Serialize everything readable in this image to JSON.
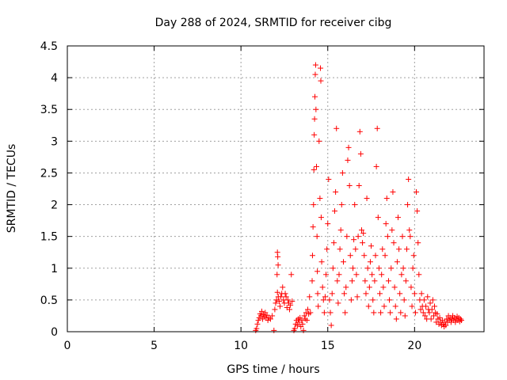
{
  "chart_data": {
    "type": "scatter",
    "title": "Day 288 of 2024, SRMTID for receiver cibg",
    "xlabel": "GPS time / hours",
    "ylabel": "SRMTID / TECUs",
    "xlim": [
      0,
      24
    ],
    "ylim": [
      0,
      4.5
    ],
    "xticks": [
      0,
      5,
      10,
      15,
      20
    ],
    "xtick_labels": [
      "0",
      "5",
      "10",
      "15",
      "20"
    ],
    "yticks": [
      0,
      0.5,
      1,
      1.5,
      2,
      2.5,
      3,
      3.5,
      4,
      4.5
    ],
    "ytick_labels": [
      "0",
      "0.5",
      "1",
      "1.5",
      "2",
      "2.5",
      "3",
      "3.5",
      "4",
      "4.5"
    ],
    "grid": true,
    "marker": "+",
    "color": "#ff0000",
    "series": [
      {
        "name": "cibg",
        "points": [
          [
            10.85,
            0.02
          ],
          [
            10.9,
            0.05
          ],
          [
            10.95,
            0.12
          ],
          [
            11.0,
            0.18
          ],
          [
            11.05,
            0.22
          ],
          [
            11.1,
            0.28
          ],
          [
            11.15,
            0.25
          ],
          [
            11.2,
            0.32
          ],
          [
            11.25,
            0.2
          ],
          [
            11.3,
            0.27
          ],
          [
            11.35,
            0.24
          ],
          [
            11.4,
            0.3
          ],
          [
            11.45,
            0.22
          ],
          [
            11.5,
            0.26
          ],
          [
            11.55,
            0.18
          ],
          [
            11.6,
            0.22
          ],
          [
            11.7,
            0.2
          ],
          [
            11.8,
            0.25
          ],
          [
            11.9,
            0.02
          ],
          [
            11.95,
            0.35
          ],
          [
            12.0,
            0.45
          ],
          [
            12.05,
            0.5
          ],
          [
            12.1,
            0.62
          ],
          [
            12.15,
            0.55
          ],
          [
            12.2,
            0.48
          ],
          [
            12.25,
            0.4
          ],
          [
            12.1,
            1.25
          ],
          [
            12.12,
            1.18
          ],
          [
            12.14,
            1.05
          ],
          [
            12.08,
            0.9
          ],
          [
            12.3,
            0.55
          ],
          [
            12.35,
            0.6
          ],
          [
            12.4,
            0.7
          ],
          [
            12.45,
            0.5
          ],
          [
            12.5,
            0.45
          ],
          [
            12.55,
            0.6
          ],
          [
            12.6,
            0.55
          ],
          [
            12.65,
            0.38
          ],
          [
            12.7,
            0.5
          ],
          [
            12.75,
            0.45
          ],
          [
            12.8,
            0.35
          ],
          [
            12.85,
            0.42
          ],
          [
            12.9,
            0.9
          ],
          [
            12.95,
            0.48
          ],
          [
            13.05,
            0.02
          ],
          [
            13.1,
            0.05
          ],
          [
            13.15,
            0.12
          ],
          [
            13.2,
            0.18
          ],
          [
            13.25,
            0.1
          ],
          [
            13.3,
            0.2
          ],
          [
            13.35,
            0.15
          ],
          [
            13.4,
            0.22
          ],
          [
            13.45,
            0.08
          ],
          [
            13.5,
            0.18
          ],
          [
            13.55,
            0.12
          ],
          [
            13.6,
            0.02
          ],
          [
            13.65,
            0.25
          ],
          [
            13.7,
            0.2
          ],
          [
            13.75,
            0.3
          ],
          [
            13.8,
            0.18
          ],
          [
            13.85,
            0.35
          ],
          [
            13.9,
            0.28
          ],
          [
            13.95,
            0.55
          ],
          [
            14.0,
            0.3
          ],
          [
            14.1,
            0.8
          ],
          [
            14.12,
            1.2
          ],
          [
            14.15,
            1.65
          ],
          [
            14.18,
            2.0
          ],
          [
            14.2,
            2.55
          ],
          [
            14.22,
            3.1
          ],
          [
            14.24,
            3.35
          ],
          [
            14.26,
            3.7
          ],
          [
            14.28,
            4.05
          ],
          [
            14.3,
            4.2
          ],
          [
            14.32,
            3.5
          ],
          [
            14.35,
            2.6
          ],
          [
            14.38,
            1.5
          ],
          [
            14.4,
            0.95
          ],
          [
            14.42,
            0.6
          ],
          [
            14.45,
            0.4
          ],
          [
            14.5,
            3.0
          ],
          [
            14.55,
            2.1
          ],
          [
            14.58,
            4.15
          ],
          [
            14.6,
            3.95
          ],
          [
            14.62,
            1.8
          ],
          [
            14.65,
            1.1
          ],
          [
            14.7,
            0.7
          ],
          [
            14.75,
            0.5
          ],
          [
            14.8,
            0.3
          ],
          [
            14.85,
            0.55
          ],
          [
            14.9,
            0.9
          ],
          [
            14.95,
            1.3
          ],
          [
            15.0,
            1.7
          ],
          [
            15.05,
            2.4
          ],
          [
            15.1,
            0.5
          ],
          [
            15.15,
            0.3
          ],
          [
            15.2,
            0.1
          ],
          [
            15.25,
            0.6
          ],
          [
            15.3,
            1.0
          ],
          [
            15.35,
            1.4
          ],
          [
            15.4,
            1.9
          ],
          [
            15.45,
            2.2
          ],
          [
            15.5,
            3.2
          ],
          [
            15.55,
            0.8
          ],
          [
            15.6,
            0.45
          ],
          [
            15.65,
            0.9
          ],
          [
            15.7,
            1.3
          ],
          [
            15.75,
            1.6
          ],
          [
            15.8,
            2.0
          ],
          [
            15.85,
            2.5
          ],
          [
            15.9,
            1.1
          ],
          [
            15.95,
            0.6
          ],
          [
            16.0,
            0.3
          ],
          [
            16.05,
            0.7
          ],
          [
            16.1,
            1.5
          ],
          [
            16.15,
            2.7
          ],
          [
            16.2,
            2.9
          ],
          [
            16.25,
            2.3
          ],
          [
            16.3,
            1.2
          ],
          [
            16.35,
            0.5
          ],
          [
            16.4,
            0.8
          ],
          [
            16.45,
            1.0
          ],
          [
            16.5,
            1.45
          ],
          [
            16.55,
            2.0
          ],
          [
            16.6,
            1.3
          ],
          [
            16.65,
            0.9
          ],
          [
            16.7,
            0.55
          ],
          [
            16.75,
            1.5
          ],
          [
            16.8,
            2.3
          ],
          [
            16.85,
            3.15
          ],
          [
            16.9,
            2.8
          ],
          [
            16.95,
            1.6
          ],
          [
            17.0,
            1.4
          ],
          [
            17.05,
            1.55
          ],
          [
            17.1,
            1.2
          ],
          [
            17.15,
            0.8
          ],
          [
            17.2,
            0.6
          ],
          [
            17.25,
            2.1
          ],
          [
            17.3,
            1.0
          ],
          [
            17.35,
            0.4
          ],
          [
            17.4,
            0.7
          ],
          [
            17.45,
            1.1
          ],
          [
            17.5,
            1.35
          ],
          [
            17.55,
            0.9
          ],
          [
            17.6,
            0.5
          ],
          [
            17.65,
            0.3
          ],
          [
            17.7,
            0.8
          ],
          [
            17.75,
            1.2
          ],
          [
            17.8,
            2.6
          ],
          [
            17.85,
            3.2
          ],
          [
            17.9,
            1.8
          ],
          [
            17.95,
            1.0
          ],
          [
            18.0,
            0.6
          ],
          [
            18.05,
            0.3
          ],
          [
            18.1,
            0.9
          ],
          [
            18.15,
            1.3
          ],
          [
            18.2,
            0.7
          ],
          [
            18.25,
            0.4
          ],
          [
            18.3,
            1.2
          ],
          [
            18.35,
            1.7
          ],
          [
            18.4,
            2.1
          ],
          [
            18.45,
            1.5
          ],
          [
            18.5,
            0.8
          ],
          [
            18.55,
            0.5
          ],
          [
            18.6,
            0.3
          ],
          [
            18.65,
            1.0
          ],
          [
            18.7,
            1.6
          ],
          [
            18.75,
            2.2
          ],
          [
            18.8,
            1.4
          ],
          [
            18.85,
            0.7
          ],
          [
            18.9,
            0.4
          ],
          [
            18.95,
            0.2
          ],
          [
            19.0,
            1.1
          ],
          [
            19.05,
            1.8
          ],
          [
            19.1,
            1.3
          ],
          [
            19.15,
            0.6
          ],
          [
            19.2,
            0.3
          ],
          [
            19.25,
            0.9
          ],
          [
            19.3,
            1.5
          ],
          [
            19.35,
            1.0
          ],
          [
            19.4,
            0.5
          ],
          [
            19.45,
            0.25
          ],
          [
            19.5,
            0.8
          ],
          [
            19.55,
            1.3
          ],
          [
            19.6,
            2.0
          ],
          [
            19.65,
            2.4
          ],
          [
            19.7,
            1.6
          ],
          [
            19.75,
            1.5
          ],
          [
            19.8,
            0.7
          ],
          [
            19.85,
            0.4
          ],
          [
            19.9,
            1.0
          ],
          [
            19.95,
            1.2
          ],
          [
            20.0,
            0.6
          ],
          [
            20.05,
            0.3
          ],
          [
            20.1,
            2.2
          ],
          [
            20.15,
            1.9
          ],
          [
            20.2,
            1.4
          ],
          [
            20.25,
            0.9
          ],
          [
            20.3,
            0.5
          ],
          [
            20.35,
            0.35
          ],
          [
            20.4,
            0.6
          ],
          [
            20.45,
            0.4
          ],
          [
            20.5,
            0.3
          ],
          [
            20.55,
            0.5
          ],
          [
            20.6,
            0.25
          ],
          [
            20.65,
            0.4
          ],
          [
            20.7,
            0.2
          ],
          [
            20.75,
            0.55
          ],
          [
            20.8,
            0.35
          ],
          [
            20.85,
            0.3
          ],
          [
            20.9,
            0.45
          ],
          [
            20.95,
            0.2
          ],
          [
            21.0,
            0.35
          ],
          [
            21.05,
            0.5
          ],
          [
            21.1,
            0.25
          ],
          [
            21.15,
            0.4
          ],
          [
            21.2,
            0.3
          ],
          [
            21.25,
            0.15
          ],
          [
            21.3,
            0.28
          ],
          [
            21.35,
            0.2
          ],
          [
            21.4,
            0.12
          ],
          [
            21.45,
            0.22
          ],
          [
            21.5,
            0.15
          ],
          [
            21.55,
            0.1
          ],
          [
            21.6,
            0.18
          ],
          [
            21.65,
            0.12
          ],
          [
            21.7,
            0.08
          ],
          [
            21.75,
            0.15
          ],
          [
            21.8,
            0.1
          ],
          [
            21.85,
            0.2
          ],
          [
            21.9,
            0.15
          ],
          [
            21.95,
            0.25
          ],
          [
            22.0,
            0.18
          ],
          [
            22.05,
            0.22
          ],
          [
            22.1,
            0.15
          ],
          [
            22.15,
            0.2
          ],
          [
            22.2,
            0.25
          ],
          [
            22.25,
            0.18
          ],
          [
            22.3,
            0.22
          ],
          [
            22.35,
            0.15
          ],
          [
            22.4,
            0.2
          ],
          [
            22.45,
            0.24
          ],
          [
            22.5,
            0.18
          ],
          [
            22.55,
            0.22
          ],
          [
            22.6,
            0.16
          ],
          [
            22.65,
            0.2
          ],
          [
            22.7,
            0.18
          ]
        ]
      }
    ]
  }
}
